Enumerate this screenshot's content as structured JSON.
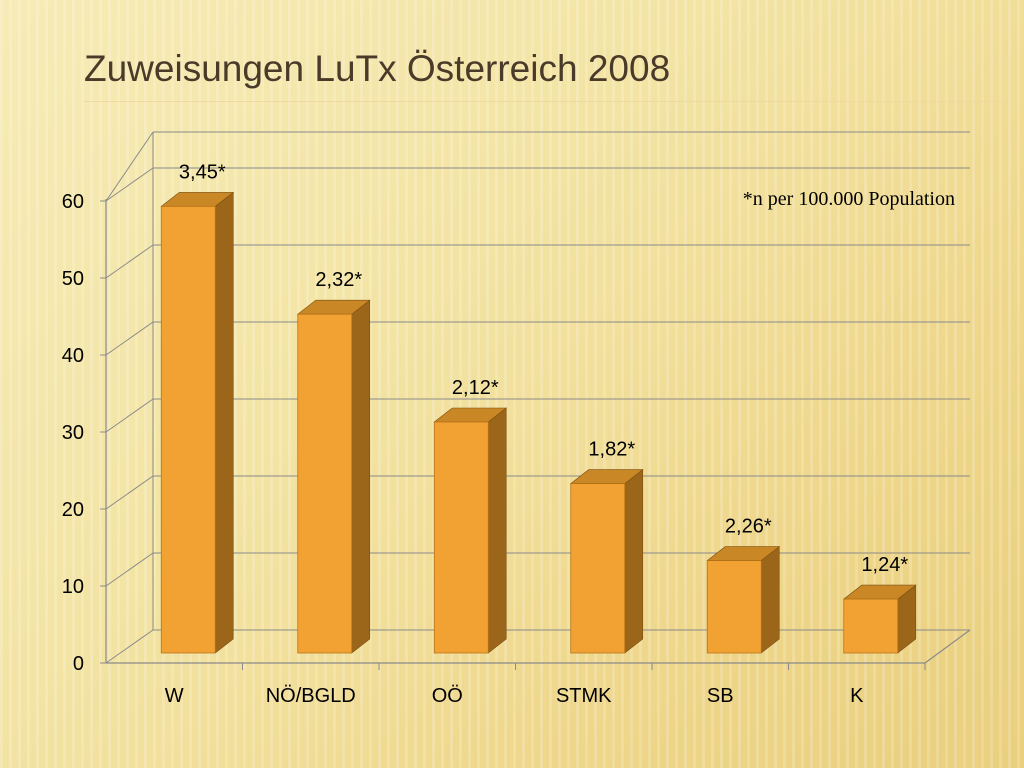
{
  "slide": {
    "title": "Zuweisungen LuTx Österreich 2008"
  },
  "chart_data": {
    "type": "bar",
    "title": "",
    "xlabel": "",
    "ylabel": "",
    "categories": [
      "W",
      "NÖ/BGLD",
      "OÖ",
      "STMK",
      "SB",
      "K"
    ],
    "values": [
      58,
      44,
      30,
      22,
      12,
      7
    ],
    "data_labels": [
      "3,45*",
      "2,32*",
      "2,12*",
      "1,82*",
      "2,26*",
      "1,24*"
    ],
    "ylim": [
      0,
      60
    ],
    "yticks": [
      0,
      10,
      20,
      30,
      40,
      50,
      60
    ],
    "grid": true,
    "annotation": "*n per 100.000 Population",
    "colors": {
      "bar_front": "#f2a233",
      "bar_side": "#9c661a",
      "bar_top": "#c98726",
      "grid": "#8a8a8a"
    }
  }
}
